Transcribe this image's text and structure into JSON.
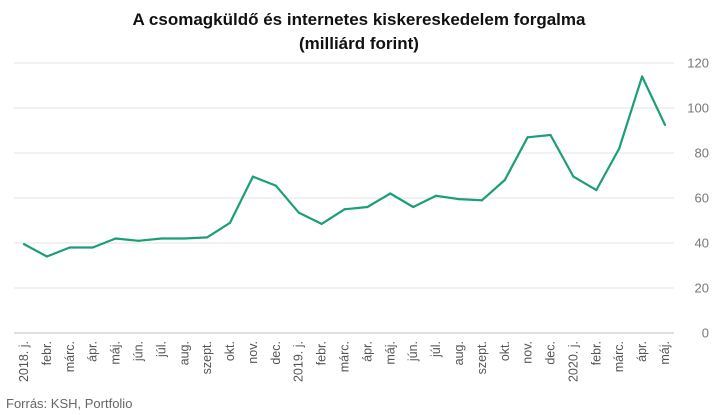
{
  "chart_data": {
    "type": "line",
    "title_line1": "A csomagküldő és internetes kiskereskedelem forgalma",
    "title_line2": "(milliárd forint)",
    "xlabel": "",
    "ylabel": "",
    "ylim": [
      0,
      120
    ],
    "yticks": [
      0,
      20,
      40,
      60,
      80,
      100,
      120
    ],
    "y_axis_position": "right",
    "grid": true,
    "legend": "none",
    "line_color": "#1b9e7a",
    "categories": [
      "2018. j.",
      "febr.",
      "márc.",
      "ápr.",
      "máj.",
      "jún.",
      "júl.",
      "aug.",
      "szept.",
      "okt.",
      "nov.",
      "dec.",
      "2019. j.",
      "febr.",
      "márc.",
      "ápr.",
      "máj.",
      "jún.",
      "júl.",
      "aug.",
      "szept.",
      "okt.",
      "nov.",
      "dec.",
      "2020. j.",
      "febr.",
      "márc.",
      "ápr.",
      "máj."
    ],
    "values": [
      39.5,
      34,
      38,
      38,
      42,
      41,
      42,
      42,
      42.5,
      49,
      69.5,
      65.5,
      53.5,
      48.5,
      55,
      56,
      62,
      56,
      61,
      59.5,
      59,
      68,
      87,
      88,
      69.5,
      63.5,
      82,
      114,
      92.5
    ]
  },
  "source": "Forrás: KSH, Portfolio"
}
